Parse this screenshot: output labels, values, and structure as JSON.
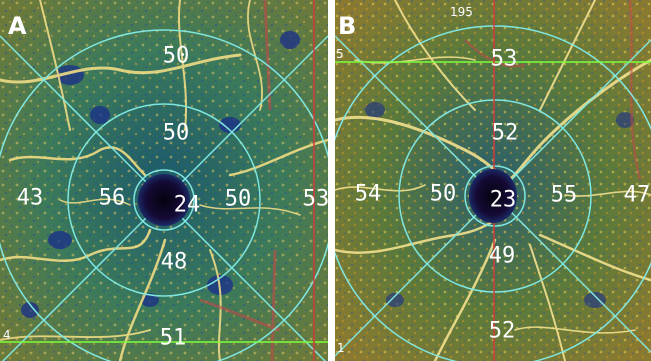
{
  "panels": [
    {
      "label": "A",
      "center": "24",
      "inner": {
        "superior": "50",
        "nasal": "56",
        "temporal": "50",
        "inferior": "48"
      },
      "outer": {
        "superior": "50",
        "nasal": "43",
        "temporal": "53",
        "inferior": "51"
      },
      "edge": {
        "bottom_left": "4"
      }
    },
    {
      "label": "B",
      "center": "23",
      "inner": {
        "superior": "52",
        "nasal": "50",
        "temporal": "55",
        "inferior": "49"
      },
      "outer": {
        "superior": "53",
        "nasal": "54",
        "temporal": "47",
        "inferior": "52"
      },
      "edge": {
        "top": "195",
        "top_left": "5",
        "bottom_left": "1"
      }
    }
  ],
  "colors": {
    "background": "#2e6f62",
    "vessel": "#e8d27a",
    "grid_circle": "#7fe6e0",
    "horizontal_line": "#7dff3a",
    "vertical_line": "#d43a3a",
    "center_spot": "#120a2a"
  }
}
